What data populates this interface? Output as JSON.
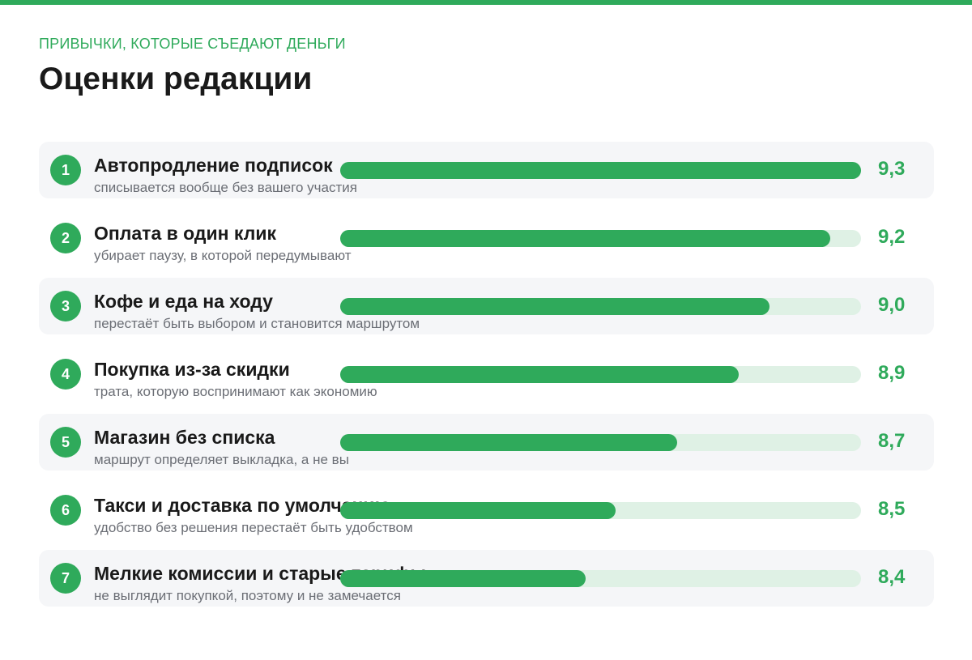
{
  "header": {
    "eyebrow": "ПРИВЫЧКИ, КОТОРЫЕ СЪЕДАЮТ ДЕНЬГИ",
    "title": "Оценки редакции"
  },
  "colors": {
    "accent": "#2faa5b",
    "track": "#dff1e5",
    "row_shade": "#f5f6f8"
  },
  "chart_data": {
    "type": "bar",
    "orientation": "horizontal",
    "title": "Оценки редакции",
    "categories": [
      "Автопродление подписок",
      "Оплата в один клик",
      "Кофе и еда на ходу",
      "Покупка из-за скидки",
      "Магазин без списка",
      "Такси и доставка по умолчанию",
      "Мелкие комиссии и старые тарифы"
    ],
    "values": [
      9.3,
      9.2,
      9.0,
      8.9,
      8.7,
      8.5,
      8.4
    ],
    "value_labels": [
      "9,3",
      "9,2",
      "9,0",
      "8,9",
      "8,7",
      "8,5",
      "8,4"
    ],
    "ranks": [
      "1",
      "2",
      "3",
      "4",
      "5",
      "6",
      "7"
    ],
    "subtitles": [
      "списывается вообще без вашего участия",
      "убирает паузу, в которой передумывают",
      "перестаёт быть выбором и становится маршрутом",
      "трата, которую воспринимают как экономию",
      "маршрут определяет выкладка, а не вы",
      "удобство без решения перестаёт быть удобством",
      "не выглядит покупкой, поэтому и не замечается"
    ],
    "xlim": [
      7.6,
      9.3
    ],
    "grid": false,
    "legend": "none"
  }
}
